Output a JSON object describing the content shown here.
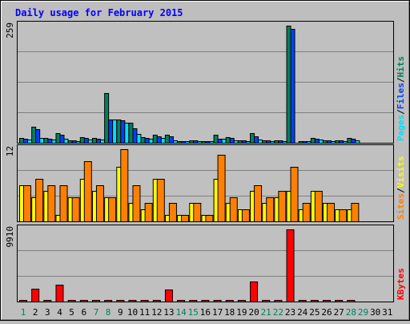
{
  "chart_data": {
    "type": "bar",
    "title": "Daily usage for February 2015",
    "days": [
      "1",
      "2",
      "3",
      "4",
      "5",
      "6",
      "7",
      "8",
      "9",
      "10",
      "11",
      "12",
      "13",
      "14",
      "15",
      "16",
      "17",
      "18",
      "19",
      "20",
      "21",
      "22",
      "23",
      "24",
      "25",
      "26",
      "27",
      "28",
      "29",
      "30",
      "31"
    ],
    "weekend_days": [
      "1",
      "7",
      "8",
      "14",
      "15",
      "21",
      "22",
      "28",
      "29"
    ],
    "colors": {
      "hits": "#00805c",
      "files": "#0040ff",
      "pages": "#00e0ff",
      "visits": "#ffff00",
      "sites": "#ff8000",
      "kbytes": "#ff0000",
      "weekday_label": "#000000",
      "weekend_label": "#00805c",
      "title": "#0000ff"
    },
    "panels": [
      {
        "name": "requests",
        "max_label": "259",
        "ymax": 259,
        "legend": [
          {
            "text": "Pages",
            "color": "#00e0ff"
          },
          {
            "text": "/",
            "color": "#000000"
          },
          {
            "text": "Files",
            "color": "#0040ff"
          },
          {
            "text": "/",
            "color": "#000000"
          },
          {
            "text": "Hits",
            "color": "#00805c"
          }
        ],
        "series": [
          {
            "key": "hits",
            "color": "#00805c",
            "values": [
              10,
              35,
              10,
              22,
              6,
              12,
              10,
              110,
              52,
              45,
              12,
              18,
              18,
              2,
              6,
              2,
              18,
              12,
              6,
              22,
              6,
              6,
              259,
              4,
              10,
              6,
              6,
              10,
              0,
              0,
              0
            ]
          },
          {
            "key": "files",
            "color": "#0040ff",
            "values": [
              8,
              30,
              8,
              18,
              5,
              10,
              8,
              52,
              50,
              32,
              10,
              15,
              15,
              1,
              5,
              1,
              8,
              10,
              5,
              15,
              5,
              5,
              252,
              3,
              8,
              5,
              5,
              8,
              0,
              0,
              0
            ]
          },
          {
            "key": "pages",
            "color": "#00e0ff",
            "values": [
              7,
              10,
              7,
              8,
              4,
              7,
              7,
              52,
              44,
              20,
              8,
              10,
              5,
              1,
              4,
              1,
              8,
              5,
              4,
              7,
              4,
              4,
              0,
              2,
              7,
              4,
              4,
              5,
              0,
              0,
              0
            ]
          }
        ]
      },
      {
        "name": "visitors",
        "max_label": "12",
        "ymax": 12,
        "legend": [
          {
            "text": "Sites",
            "color": "#ff8000"
          },
          {
            "text": "/",
            "color": "#000000"
          },
          {
            "text": "Visits",
            "color": "#ffff00"
          }
        ],
        "series": [
          {
            "key": "visits",
            "color": "#ffff00",
            "values": [
              6,
              4,
              5,
              1,
              4,
              7,
              5,
              4,
              9,
              3,
              2,
              7,
              1,
              1,
              3,
              1,
              7,
              3,
              2,
              5,
              3,
              4,
              5,
              2,
              5,
              3,
              2,
              2,
              0,
              0,
              0
            ]
          },
          {
            "key": "sites",
            "color": "#ff8000",
            "values": [
              6,
              7,
              6,
              6,
              4,
              10,
              6,
              4,
              12,
              6,
              3,
              7,
              3,
              1,
              3,
              1,
              11,
              4,
              2,
              6,
              4,
              5,
              9,
              3,
              5,
              3,
              2,
              3,
              0,
              0,
              0
            ]
          }
        ]
      },
      {
        "name": "volume",
        "max_label": "9910",
        "ymax": 9910,
        "legend": [
          {
            "text": "KBytes",
            "color": "#ff0000"
          }
        ],
        "series": [
          {
            "key": "kbytes",
            "color": "#ff0000",
            "values": [
              50,
              1750,
              50,
              2350,
              50,
              50,
              50,
              50,
              50,
              250,
              50,
              50,
              1650,
              50,
              50,
              50,
              50,
              50,
              50,
              2750,
              50,
              50,
              9910,
              50,
              50,
              50,
              50,
              50,
              0,
              0,
              0
            ]
          }
        ]
      }
    ]
  }
}
